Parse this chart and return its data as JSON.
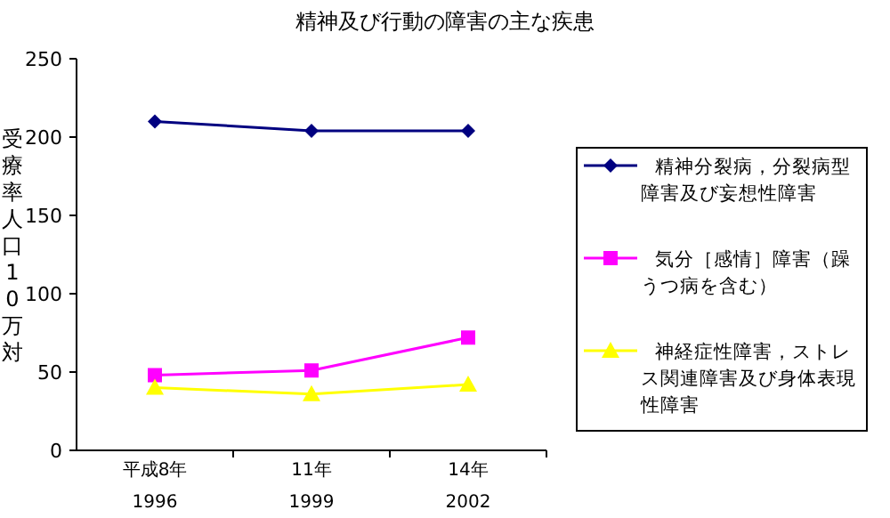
{
  "chart_data": {
    "type": "line",
    "title": "精神及び行動の障害の主な疾患",
    "ylabel": "受療率人口10万対",
    "categories": [
      "平成8年\n1996",
      "11年\n1999",
      "14年\n2002"
    ],
    "ylim": [
      0,
      250
    ],
    "yticks": [
      0,
      50,
      100,
      150,
      200,
      250
    ],
    "legend": "right",
    "grid": false,
    "series": [
      {
        "name": "精神分裂病，分裂病型障害及び妄想性障害",
        "color": "#000080",
        "marker": "diamond",
        "values": [
          210,
          204,
          204
        ]
      },
      {
        "name": "気分［感情］障害（躁うつ病を含む）",
        "color": "#ff00ff",
        "marker": "square",
        "values": [
          48,
          51,
          72
        ]
      },
      {
        "name": "神経症性障害，ストレス関連障害及び身体表現性障害",
        "color": "#ffff00",
        "marker": "triangle",
        "values": [
          40,
          36,
          42
        ]
      }
    ]
  }
}
